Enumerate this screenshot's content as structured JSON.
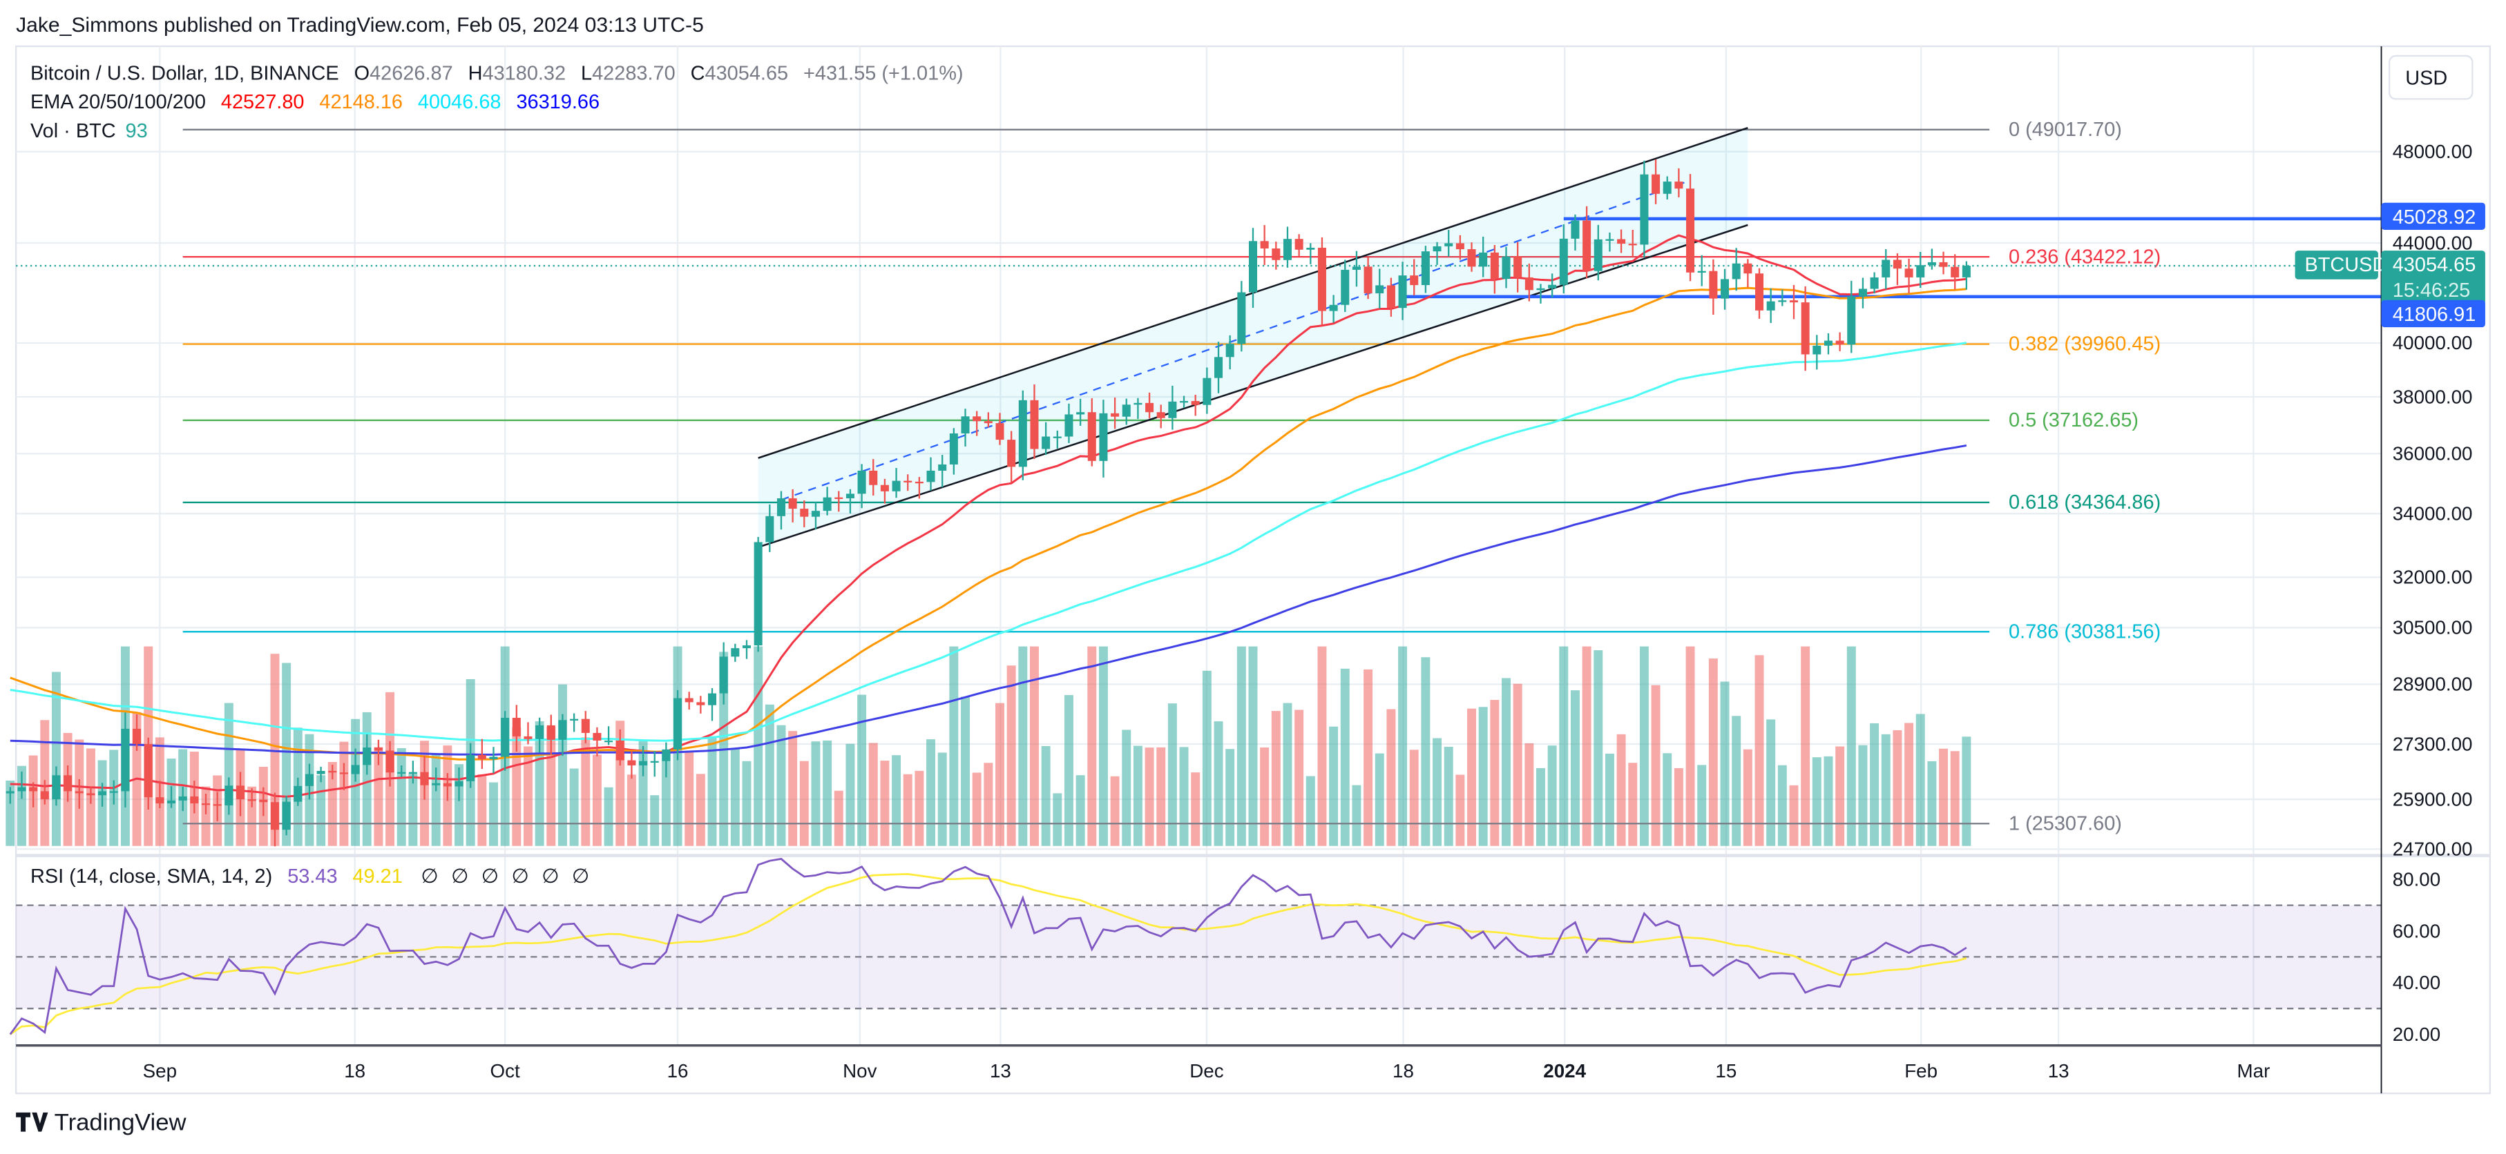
{
  "header": {
    "published": "Jake_Simmons published on TradingView.com, Feb 05, 2024 03:13 UTC-5"
  },
  "legend": {
    "symbol": "Bitcoin / U.S. Dollar, 1D, BINANCE",
    "o_label": "O",
    "o": "42626.87",
    "h_label": "H",
    "h": "43180.32",
    "l_label": "L",
    "l": "42283.70",
    "c_label": "C",
    "c": "43054.65",
    "change": "+431.55 (+1.01%)",
    "ema_label": "EMA 20/50/100/200",
    "ema20": "42527.80",
    "ema50": "42148.16",
    "ema100": "40046.68",
    "ema200": "36319.66",
    "vol_label": "Vol · BTC",
    "vol": "93"
  },
  "rsi_legend": {
    "label": "RSI (14, close, SMA, 14, 2)",
    "rsi": "53.43",
    "sma": "49.21",
    "na": [
      "∅",
      "∅",
      "∅",
      "∅",
      "∅",
      "∅"
    ]
  },
  "currency_button": "USD",
  "price_axis": [
    "48000.00",
    "44000.00",
    "40000.00",
    "38000.00",
    "36000.00",
    "34000.00",
    "32000.00",
    "30500.00",
    "28900.00",
    "27300.00",
    "25900.00",
    "24700.00"
  ],
  "rsi_axis": [
    "80.00",
    "60.00",
    "40.00",
    "20.00"
  ],
  "time_axis": [
    "Sep",
    "18",
    "Oct",
    "16",
    "Nov",
    "13",
    "Dec",
    "18",
    "2024",
    "15",
    "Feb",
    "13",
    "Mar"
  ],
  "badges": {
    "upper_level": "45028.92",
    "lower_level": "41806.91",
    "symbol": "BTCUSD",
    "last_price": "43054.65",
    "countdown": "15:46:25"
  },
  "fib_levels": [
    {
      "label": "0 (49017.70)",
      "ratio": 0,
      "price": 49017.7,
      "color": "#787b86"
    },
    {
      "label": "0.236 (43422.12)",
      "ratio": 0.236,
      "price": 43422.12,
      "color": "#f23645"
    },
    {
      "label": "0.382 (39960.45)",
      "ratio": 0.382,
      "price": 39960.45,
      "color": "#ff9800"
    },
    {
      "label": "0.5 (37162.65)",
      "ratio": 0.5,
      "price": 37162.65,
      "color": "#4caf50"
    },
    {
      "label": "0.618 (34364.86)",
      "ratio": 0.618,
      "price": 34364.86,
      "color": "#089981"
    },
    {
      "label": "0.786 (30381.56)",
      "ratio": 0.786,
      "price": 30381.56,
      "color": "#00bcd4"
    },
    {
      "label": "1 (25307.60)",
      "ratio": 1,
      "price": 25307.6,
      "color": "#787b86"
    }
  ],
  "horizontal_levels": [
    {
      "price": 45028.92,
      "start": "2024-01-01"
    },
    {
      "price": 41806.91,
      "start": "2023-12-18"
    }
  ],
  "channel": {
    "upper": [
      [
        "2023-10-23",
        35850
      ],
      [
        "2024-01-17",
        49100
      ]
    ],
    "lower": [
      [
        "2023-10-23",
        32930
      ],
      [
        "2024-01-17",
        44760
      ]
    ],
    "middle": [
      [
        "2023-10-25",
        34450
      ],
      [
        "2024-01-12",
        46700
      ]
    ]
  },
  "colors": {
    "up": "#26a69a",
    "down": "#ef5350",
    "ema20": "#f23645",
    "ema50": "#ff9800",
    "ema100": "#4dfaf5",
    "ema200": "#3f3fe6",
    "rsi": "#7e57c2",
    "rsi_sma": "#ffeb3b",
    "level_blue": "#2962ff"
  },
  "brand": "TradingView",
  "chart_data": {
    "type": "candlestick",
    "start_date": "2023-08-19",
    "interval": "1D",
    "price_scale": "log",
    "ylim": [
      24700,
      49500
    ],
    "closes": [
      26100,
      26200,
      26100,
      25900,
      26500,
      26100,
      26050,
      26000,
      26100,
      26100,
      27700,
      27300,
      25950,
      25800,
      25870,
      25970,
      25800,
      25780,
      25750,
      26240,
      25900,
      25890,
      25830,
      25160,
      25840,
      26230,
      26530,
      26610,
      26570,
      26530,
      26760,
      27210,
      27130,
      26570,
      26580,
      26580,
      26250,
      26300,
      26220,
      26350,
      27020,
      26910,
      26970,
      27990,
      27500,
      27430,
      27790,
      27410,
      27930,
      27960,
      27590,
      27390,
      27390,
      26880,
      26750,
      26860,
      26860,
      27160,
      28520,
      28410,
      28330,
      28650,
      29670,
      29910,
      29990,
      33090,
      33920,
      34500,
      34160,
      33900,
      34090,
      34530,
      34500,
      34650,
      35420,
      34940,
      34730,
      35080,
      35050,
      35040,
      35420,
      35630,
      36700,
      37300,
      37130,
      37060,
      36480,
      35550,
      37880,
      36160,
      36590,
      36590,
      37370,
      37450,
      35750,
      37410,
      37290,
      37720,
      37780,
      37450,
      37240,
      37830,
      37850,
      37710,
      38690,
      39470,
      39970,
      41980,
      44080,
      43770,
      43290,
      44170,
      43720,
      43800,
      41240,
      41480,
      42890,
      43020,
      41940,
      42260,
      41360,
      42660,
      42270,
      43650,
      43860,
      43990,
      43740,
      43020,
      43600,
      42520,
      43440,
      42580,
      42070,
      42140,
      42280,
      44180,
      44950,
      42840,
      44150,
      44160,
      43970,
      43930,
      46970,
      46110,
      46650,
      46340,
      42780,
      42840,
      41730,
      42510,
      43150,
      42740,
      41260,
      41620,
      41660,
      41580,
      39570,
      39900,
      40090,
      39940,
      41820,
      42120,
      42580,
      43300,
      42940,
      42580,
      43080,
      43200,
      43010,
      42580,
      43054.65
    ]
  }
}
